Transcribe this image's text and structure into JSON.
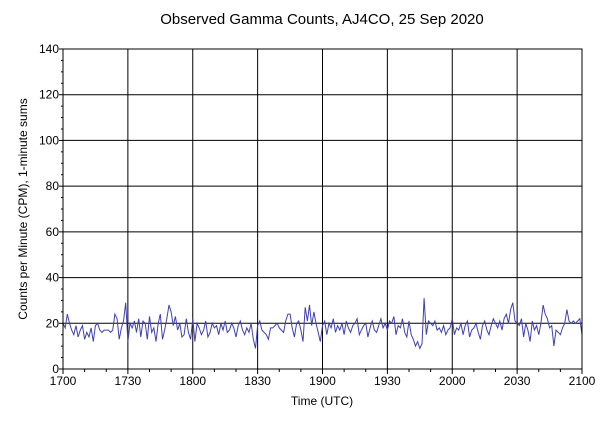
{
  "chart_data": {
    "type": "line",
    "title": "Observed Gamma Counts, AJ4CO, 25 Sep 2020",
    "xlabel": "Time (UTC)",
    "ylabel": "Counts per Minute (CPM), 1-minute sums",
    "xlim": [
      "1700",
      "2100"
    ],
    "ylim": [
      0,
      140
    ],
    "x_ticks": [
      "1700",
      "1730",
      "1800",
      "1830",
      "1900",
      "1930",
      "2000",
      "2030",
      "2100"
    ],
    "y_ticks": [
      0,
      20,
      40,
      60,
      80,
      100,
      120,
      140
    ],
    "grid": true,
    "series_color": "#4040b0",
    "x_interval": "1 minute from 1700 to 2100 UTC",
    "series": [
      {
        "values": [
          20,
          18,
          24,
          20,
          17,
          15,
          19,
          14,
          17,
          19,
          13,
          16,
          14,
          18,
          12,
          19,
          20,
          17,
          16,
          17,
          17,
          17,
          16,
          17,
          24,
          22,
          13,
          18,
          21,
          29,
          12,
          20,
          18,
          21,
          16,
          22,
          14,
          21,
          20,
          13,
          23,
          16,
          18,
          12,
          20,
          24,
          13,
          17,
          22,
          28,
          25,
          19,
          23,
          17,
          20,
          14,
          15,
          22,
          16,
          13,
          22,
          12,
          20,
          18,
          15,
          17,
          21,
          14,
          16,
          20,
          18,
          19,
          15,
          20,
          17,
          21,
          16,
          17,
          20,
          18,
          14,
          19,
          21,
          17,
          15,
          18,
          16,
          20,
          13,
          9,
          19,
          21,
          17,
          16,
          15,
          13,
          18,
          18,
          19,
          20,
          18,
          17,
          16,
          21,
          24,
          24,
          18,
          14,
          20,
          21,
          17,
          12,
          27,
          21,
          28,
          19,
          25,
          20,
          16,
          12,
          19,
          21,
          15,
          20,
          18,
          22,
          16,
          19,
          17,
          20,
          15,
          21,
          18,
          16,
          19,
          20,
          22,
          15,
          17,
          19,
          20,
          14,
          18,
          21,
          17,
          16,
          19,
          22,
          18,
          20,
          17,
          21,
          20,
          23,
          15,
          19,
          18,
          22,
          16,
          14,
          21,
          15,
          13,
          10,
          12,
          9,
          11,
          31,
          15,
          21,
          20,
          19,
          21,
          17,
          18,
          16,
          19,
          15,
          17,
          18,
          22,
          15,
          18,
          17,
          20,
          15,
          19,
          21,
          14,
          17,
          18,
          20,
          16,
          13,
          19,
          21,
          17,
          15,
          19,
          22,
          20,
          18,
          21,
          17,
          22,
          24,
          20,
          26,
          29,
          21,
          20,
          19,
          22,
          14,
          20,
          17,
          12,
          21,
          17,
          19,
          15,
          20,
          28,
          24,
          22,
          18,
          19,
          10,
          17,
          16,
          15,
          18,
          20,
          26,
          21,
          20,
          21,
          20,
          21,
          22,
          15
        ]
      }
    ]
  }
}
